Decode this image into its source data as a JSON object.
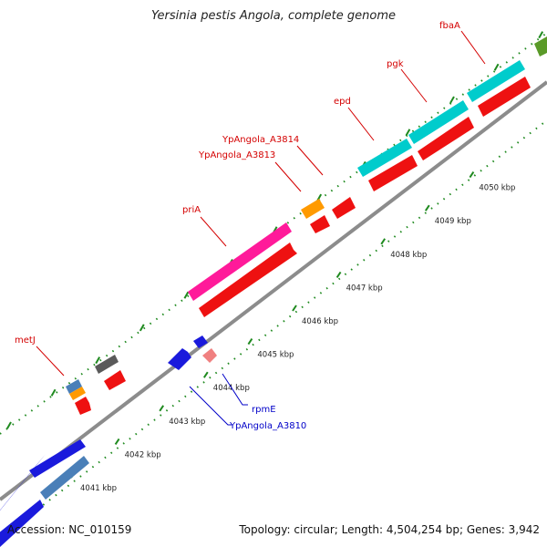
{
  "title": "Yersinia pestis Angola, complete genome",
  "footer": {
    "accession": "Accession: NC_010159",
    "summary": "Topology: circular; Length: 4,504,254 bp; Genes: 3,942"
  },
  "colors": {
    "backbone": "#8c8c8c",
    "tick": "#1f8a1f",
    "label_forward": "#d40000",
    "label_reverse": "#0000c8"
  },
  "ticks": [
    {
      "label": "4041 kbp"
    },
    {
      "label": "4042 kbp"
    },
    {
      "label": "4043 kbp"
    },
    {
      "label": "4044 kbp"
    },
    {
      "label": "4045 kbp"
    },
    {
      "label": "4046 kbp"
    },
    {
      "label": "4047 kbp"
    },
    {
      "label": "4048 kbp"
    },
    {
      "label": "4049 kbp"
    },
    {
      "label": "4050 kbp"
    }
  ],
  "gene_labels": [
    {
      "name": "metJ",
      "strand": "forward"
    },
    {
      "name": "priA",
      "strand": "forward"
    },
    {
      "name": "YpAngola_A3813",
      "strand": "forward"
    },
    {
      "name": "YpAngola_A3814",
      "strand": "forward"
    },
    {
      "name": "epd",
      "strand": "forward"
    },
    {
      "name": "pgk",
      "strand": "forward"
    },
    {
      "name": "fbaA",
      "strand": "forward"
    },
    {
      "name": "rpmE",
      "strand": "reverse"
    },
    {
      "name": "YpAngola_A3810",
      "strand": "reverse"
    }
  ]
}
